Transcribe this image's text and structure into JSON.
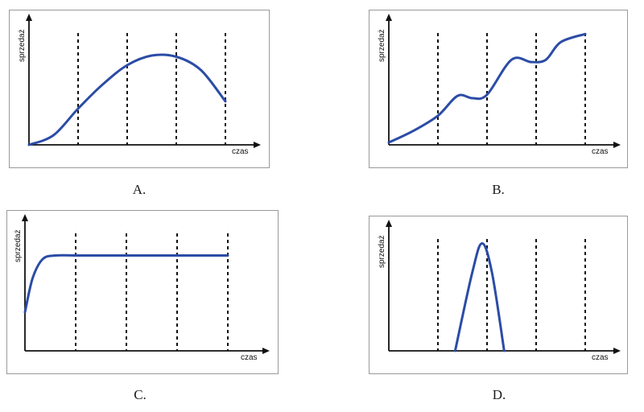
{
  "colors": {
    "curve": "#2b4ca6",
    "axis": "#111111",
    "border": "#9a9a9a"
  },
  "chart_data": [
    {
      "type": "line",
      "letter": "A.",
      "xlabel": "czas",
      "ylabel": "sprzedaż",
      "xlim": [
        0,
        10
      ],
      "ylim": [
        0,
        10
      ],
      "grid": "dashed vertical lines at x = 2, 4, 6, 8",
      "vlines": [
        2,
        4,
        6,
        8
      ],
      "series": [
        {
          "x": [
            0,
            1,
            2,
            3,
            4,
            5,
            6,
            7,
            8
          ],
          "y": [
            0,
            0.8,
            3.0,
            5.0,
            6.6,
            7.4,
            7.3,
            6.2,
            3.6
          ]
        }
      ]
    },
    {
      "type": "line",
      "letter": "B.",
      "xlabel": "czas",
      "ylabel": "sprzedaż",
      "xlim": [
        0,
        10
      ],
      "ylim": [
        0,
        10
      ],
      "grid": "dashed vertical lines at x = 2, 4, 6, 8",
      "vlines": [
        2,
        4,
        6,
        8
      ],
      "series": [
        {
          "x": [
            0,
            1,
            2,
            2.8,
            3.4,
            4,
            5,
            5.8,
            6.4,
            7,
            8
          ],
          "y": [
            0.2,
            1.2,
            2.5,
            4.2,
            4.0,
            4.3,
            7.3,
            7.1,
            7.3,
            8.8,
            9.5
          ]
        }
      ]
    },
    {
      "type": "line",
      "letter": "C.",
      "xlabel": "czas",
      "ylabel": "sprzedaż",
      "xlim": [
        0,
        10
      ],
      "ylim": [
        0,
        10
      ],
      "grid": "dashed vertical lines at x = 2, 4, 6, 8",
      "vlines": [
        2,
        4,
        6,
        8
      ],
      "series": [
        {
          "x": [
            0,
            0.3,
            0.7,
            1.2,
            2,
            4,
            6,
            8
          ],
          "y": [
            3.2,
            6.0,
            7.6,
            7.9,
            7.9,
            7.9,
            7.9,
            7.9
          ]
        }
      ]
    },
    {
      "type": "line",
      "letter": "D.",
      "xlabel": "czas",
      "ylabel": "sprzedaż",
      "xlim": [
        0,
        10
      ],
      "ylim": [
        0,
        10
      ],
      "grid": "dashed vertical lines at x = 2, 4, 6, 8",
      "vlines": [
        2,
        4,
        6,
        8
      ],
      "series": [
        {
          "x": [
            2.7,
            3.4,
            3.8,
            4.2,
            4.7
          ],
          "y": [
            0,
            6.5,
            8.9,
            6.5,
            0
          ]
        }
      ]
    }
  ]
}
